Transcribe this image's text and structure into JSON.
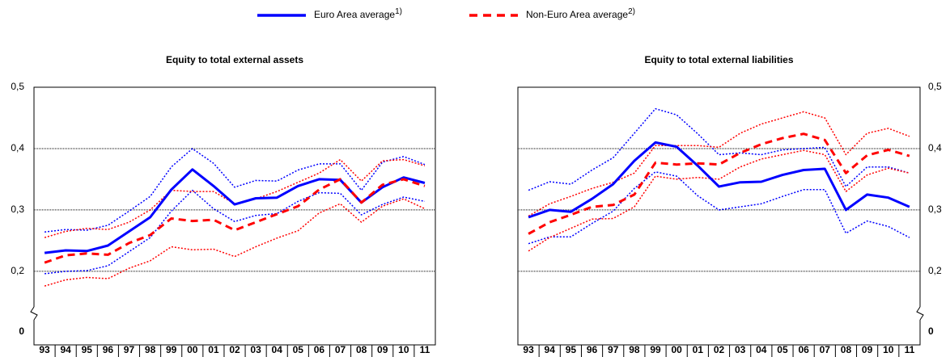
{
  "legend": [
    {
      "name": "Euro Area average",
      "superscript": "1)",
      "color": "#0000ff",
      "style": "solid"
    },
    {
      "name": "Non-Euro Area average",
      "superscript": "2)",
      "color": "#ff0000",
      "style": "dashed"
    }
  ],
  "chart_data": [
    {
      "type": "line",
      "title": "Equity to total external assets",
      "yaxis_side": "left",
      "axis_break": true,
      "grid": true,
      "categories": [
        "93",
        "94",
        "95",
        "96",
        "97",
        "98",
        "99",
        "00",
        "01",
        "02",
        "03",
        "04",
        "05",
        "06",
        "07",
        "08",
        "09",
        "10",
        "11"
      ],
      "ylim": [
        0.08,
        0.5
      ],
      "yticks": [
        {
          "value": 0,
          "label": "0"
        },
        {
          "value": 0.2,
          "label": "0,2"
        },
        {
          "value": 0.3,
          "label": "0,3"
        },
        {
          "value": 0.4,
          "label": "0,4"
        },
        {
          "value": 0.5,
          "label": "0,5"
        }
      ],
      "series": [
        {
          "color": "#0000ff",
          "style": "dotted",
          "values": [
            0.264,
            0.268,
            0.267,
            0.275,
            0.298,
            0.322,
            0.37,
            0.4,
            0.376,
            0.337,
            0.348,
            0.347,
            0.365,
            0.375,
            0.375,
            0.332,
            0.378,
            0.387,
            0.374
          ]
        },
        {
          "color": "#0000ff",
          "style": "dotted",
          "values": [
            0.196,
            0.2,
            0.201,
            0.209,
            0.232,
            0.255,
            0.298,
            0.332,
            0.302,
            0.281,
            0.291,
            0.294,
            0.314,
            0.328,
            0.327,
            0.292,
            0.309,
            0.321,
            0.314
          ]
        },
        {
          "color": "#ff0000",
          "style": "dotted",
          "values": [
            0.255,
            0.265,
            0.27,
            0.268,
            0.28,
            0.3,
            0.332,
            0.33,
            0.33,
            0.31,
            0.318,
            0.33,
            0.345,
            0.36,
            0.382,
            0.347,
            0.38,
            0.382,
            0.372
          ]
        },
        {
          "color": "#ff0000",
          "style": "dotted",
          "values": [
            0.176,
            0.186,
            0.19,
            0.188,
            0.205,
            0.217,
            0.24,
            0.235,
            0.236,
            0.224,
            0.24,
            0.254,
            0.266,
            0.295,
            0.31,
            0.28,
            0.306,
            0.318,
            0.302
          ]
        },
        {
          "color": "#0000ff",
          "style": "solid",
          "values": [
            0.23,
            0.234,
            0.233,
            0.242,
            0.265,
            0.288,
            0.333,
            0.366,
            0.339,
            0.309,
            0.319,
            0.32,
            0.339,
            0.35,
            0.349,
            0.312,
            0.337,
            0.353,
            0.344
          ]
        },
        {
          "color": "#ff0000",
          "style": "dashed",
          "values": [
            0.214,
            0.226,
            0.229,
            0.227,
            0.246,
            0.259,
            0.286,
            0.282,
            0.284,
            0.267,
            0.28,
            0.293,
            0.306,
            0.333,
            0.35,
            0.312,
            0.341,
            0.35,
            0.339
          ]
        }
      ]
    },
    {
      "type": "line",
      "title": "Equity to total external liabilities",
      "yaxis_side": "right",
      "axis_break": true,
      "grid": true,
      "categories": [
        "93",
        "94",
        "95",
        "96",
        "97",
        "98",
        "99",
        "00",
        "01",
        "02",
        "03",
        "04",
        "05",
        "06",
        "07",
        "08",
        "09",
        "10",
        "11"
      ],
      "ylim": [
        0.08,
        0.5
      ],
      "yticks": [
        {
          "value": 0,
          "label": "0"
        },
        {
          "value": 0.2,
          "label": "0,2"
        },
        {
          "value": 0.3,
          "label": "0,3"
        },
        {
          "value": 0.4,
          "label": "0,4"
        },
        {
          "value": 0.5,
          "label": "0,5"
        }
      ],
      "series": [
        {
          "color": "#0000ff",
          "style": "dotted",
          "values": [
            0.332,
            0.346,
            0.342,
            0.365,
            0.385,
            0.425,
            0.465,
            0.455,
            0.424,
            0.39,
            0.393,
            0.39,
            0.398,
            0.4,
            0.402,
            0.338,
            0.37,
            0.37,
            0.36
          ]
        },
        {
          "color": "#0000ff",
          "style": "dotted",
          "values": [
            0.245,
            0.256,
            0.256,
            0.278,
            0.298,
            0.335,
            0.362,
            0.355,
            0.323,
            0.3,
            0.305,
            0.31,
            0.322,
            0.333,
            0.333,
            0.262,
            0.282,
            0.273,
            0.255
          ]
        },
        {
          "color": "#ff0000",
          "style": "dotted",
          "values": [
            0.29,
            0.31,
            0.322,
            0.335,
            0.345,
            0.36,
            0.405,
            0.405,
            0.405,
            0.402,
            0.425,
            0.44,
            0.45,
            0.46,
            0.45,
            0.39,
            0.425,
            0.433,
            0.42
          ]
        },
        {
          "color": "#ff0000",
          "style": "dotted",
          "values": [
            0.233,
            0.255,
            0.27,
            0.285,
            0.286,
            0.305,
            0.355,
            0.35,
            0.353,
            0.35,
            0.37,
            0.383,
            0.39,
            0.397,
            0.39,
            0.33,
            0.357,
            0.368,
            0.36
          ]
        },
        {
          "color": "#0000ff",
          "style": "solid",
          "values": [
            0.288,
            0.3,
            0.297,
            0.318,
            0.342,
            0.38,
            0.41,
            0.403,
            0.372,
            0.338,
            0.345,
            0.346,
            0.357,
            0.365,
            0.367,
            0.3,
            0.325,
            0.32,
            0.305
          ]
        },
        {
          "color": "#ff0000",
          "style": "dashed",
          "values": [
            0.261,
            0.28,
            0.292,
            0.305,
            0.308,
            0.325,
            0.377,
            0.374,
            0.376,
            0.374,
            0.393,
            0.407,
            0.417,
            0.424,
            0.414,
            0.36,
            0.389,
            0.398,
            0.388
          ]
        }
      ]
    }
  ]
}
